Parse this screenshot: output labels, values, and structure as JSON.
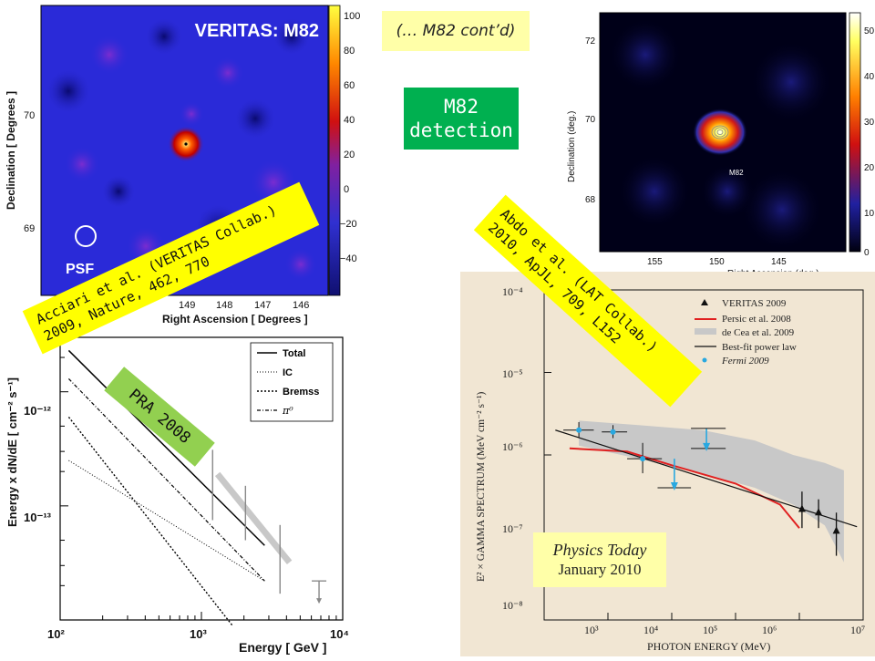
{
  "slide": {
    "title_box": "(… M82 cont’d)",
    "detection_box": [
      "M82",
      "detection"
    ],
    "label_veritas": [
      "Acciari et al. (VERITAS Collab.)",
      "2009, Nature, 462, 770"
    ],
    "label_lat": [
      "Abdo et al. (LAT Collab.)",
      "2010, ApJL, 709, L152"
    ],
    "label_pra": "PRA 2008",
    "physics_today": [
      "Physics Today",
      "January 2010"
    ],
    "colors": {
      "yellow": "#ffff00",
      "green": "#00b050",
      "light_green": "#92d050",
      "pale_yellow": "#ffffa8"
    }
  },
  "chart_data": [
    {
      "type": "heatmap",
      "title": "VERITAS: M82",
      "xlabel": "Right Ascension [ Degrees ]",
      "ylabel": "Declination [ Degrees ]",
      "x_ticks": [
        "149",
        "148",
        "147",
        "146"
      ],
      "y_ticks": [
        "70",
        "69"
      ],
      "colorbar_ticks": [
        "100",
        "80",
        "60",
        "40",
        "20",
        "0",
        "−20",
        "−40"
      ],
      "annotation": "PSF"
    },
    {
      "type": "heatmap",
      "title": "",
      "xlabel": "Right Ascension (deg.)",
      "ylabel": "Declination (deg.)",
      "x_ticks": [
        "155",
        "150",
        "145"
      ],
      "y_ticks": [
        "72",
        "70",
        "68"
      ],
      "colorbar_ticks": [
        "50",
        "40",
        "30",
        "20",
        "10",
        "0"
      ],
      "annotation": "M82"
    },
    {
      "type": "line",
      "xlabel": "Energy [ GeV ]",
      "ylabel": "Energy x dN/dE  [ cm⁻² s⁻¹]",
      "log_x": true,
      "log_y": true,
      "xlim": [
        100,
        10000
      ],
      "ylim": [
        1e-14,
        3e-12
      ],
      "x_ticks": [
        "10²",
        "10³",
        "10⁴"
      ],
      "y_ticks": [
        "10⁻¹²",
        "10⁻¹³"
      ],
      "legend": [
        "Total",
        "IC",
        "Bremss",
        "π⁰"
      ],
      "series": [
        {
          "name": "Total",
          "x": [
            115,
            2800
          ],
          "y": [
            2.3e-12,
            4.5e-14
          ]
        },
        {
          "name": "IC",
          "x": [
            115,
            2800
          ],
          "y": [
            2.5e-13,
            2.2e-14
          ]
        },
        {
          "name": "Bremss",
          "x": [
            115,
            1650
          ],
          "y": [
            6e-13,
            9e-15
          ]
        },
        {
          "name": "π⁰",
          "x": [
            115,
            2800
          ],
          "y": [
            1.3e-12,
            2.2e-14
          ]
        }
      ],
      "data_points": [
        {
          "x": 1200,
          "y_lo": 7.5e-14,
          "y_hi": 3.1e-13
        },
        {
          "x": 2050,
          "y_lo": 5e-14,
          "y_hi": 1.5e-13
        },
        {
          "x": 3600,
          "y_lo": 1.7e-14,
          "y_hi": 6.8e-14
        }
      ],
      "upper_limit": {
        "x": 6800,
        "y": 2.2e-14
      }
    },
    {
      "type": "scatter",
      "xlabel": "PHOTON ENERGY (MeV)",
      "ylabel": "E² × GAMMA SPECTRUM (MeV cm⁻² s⁻¹)",
      "log_x": true,
      "log_y": true,
      "xlim": [
        100,
        10000000
      ],
      "ylim": [
        1e-08,
        0.0001
      ],
      "x_ticks": [
        "10³",
        "10⁴",
        "10⁵",
        "10⁶",
        "10⁷"
      ],
      "y_ticks": [
        "10⁻⁴",
        "10⁻⁵",
        "10⁻⁶",
        "10⁻⁷",
        "10⁻⁸"
      ],
      "legend": [
        "VERITAS 2009",
        "Persic et al. 2008",
        "de Cea et al. 2009",
        "Best-fit power law",
        "Fermi 2009"
      ],
      "series": [
        {
          "name": "Best-fit power law",
          "x": [
            150,
            8000000
          ],
          "y": [
            2e-06,
            1.35e-07
          ]
        },
        {
          "name": "Persic et al. 2008",
          "x": [
            250,
            2000,
            10000,
            100000,
            500000,
            1000000
          ],
          "y": [
            1.2e-06,
            1.1e-06,
            7.5e-07,
            4.5e-07,
            2.5e-07,
            1.3e-07
          ]
        }
      ],
      "fermi_points": [
        {
          "x": 350,
          "y": 2e-06
        },
        {
          "x": 1200,
          "y": 1.9e-06
        },
        {
          "x": 3500,
          "y": 9e-07
        },
        {
          "x": 11000,
          "y": 4e-07,
          "upper_limit": true
        },
        {
          "x": 35000,
          "y": 1.2e-06,
          "upper_limit": true
        }
      ],
      "veritas_points": [
        {
          "x": 1100000,
          "y": 2.2e-07
        },
        {
          "x": 2000000,
          "y": 2e-07
        },
        {
          "x": 3800000,
          "y": 1.2e-07
        }
      ],
      "band": {
        "name": "de Cea et al. 2009",
        "x": [
          350,
          5000000
        ],
        "y_lo": [
          1.5e-06,
          4e-08
        ],
        "y_hi": [
          2.5e-06,
          3e-07
        ]
      }
    }
  ]
}
